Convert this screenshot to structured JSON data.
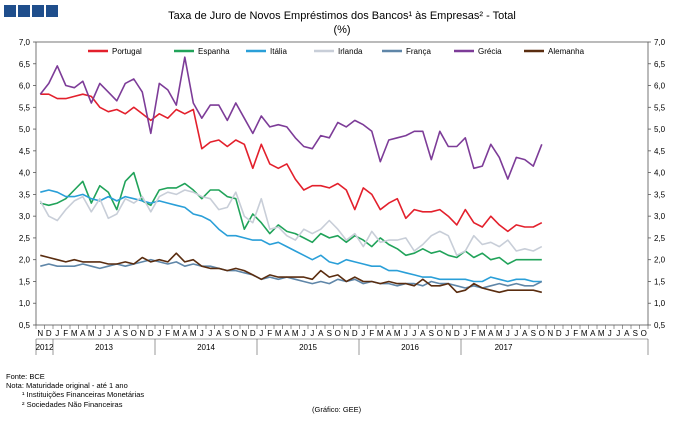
{
  "header": {
    "logo": "logo-squares"
  },
  "chart_data": {
    "type": "line",
    "title": "Taxa de Juro de Novos Empréstimos dos Bancos¹ às Empresas² - Total",
    "subtitle": "(%)",
    "ylim": [
      0.5,
      7.0
    ],
    "y_ticks": [
      "0,5",
      "1,0",
      "1,5",
      "2,0",
      "2,5",
      "3,0",
      "3,5",
      "4,0",
      "4,5",
      "5,0",
      "5,5",
      "6,0",
      "6,5",
      "7,0"
    ],
    "month_labels": [
      "N",
      "D",
      "J",
      "F",
      "M",
      "A",
      "M",
      "J",
      "J",
      "A",
      "S",
      "O",
      "N",
      "D",
      "J",
      "F",
      "M",
      "A",
      "M",
      "J",
      "J",
      "A",
      "S",
      "O",
      "N",
      "D",
      "J",
      "F",
      "M",
      "A",
      "M",
      "J",
      "J",
      "A",
      "S",
      "O",
      "N",
      "D",
      "J",
      "F",
      "M",
      "A",
      "M",
      "J",
      "J",
      "A",
      "S",
      "O",
      "N",
      "D",
      "J",
      "F",
      "M",
      "A",
      "M",
      "J",
      "J",
      "A",
      "S",
      "O",
      "N",
      "D",
      "J",
      "F",
      "M",
      "A",
      "M",
      "J",
      "J",
      "A",
      "S",
      "O"
    ],
    "years": [
      {
        "label": "2012",
        "start": 0,
        "end": 2
      },
      {
        "label": "2013",
        "start": 2,
        "end": 14
      },
      {
        "label": "2014",
        "start": 14,
        "end": 26
      },
      {
        "label": "2015",
        "start": 26,
        "end": 38
      },
      {
        "label": "2016",
        "start": 38,
        "end": 50
      },
      {
        "label": "2017",
        "start": 50,
        "end": 60
      }
    ],
    "series": [
      {
        "name": "Portugal",
        "color": "#e3202c",
        "values": [
          5.8,
          5.8,
          5.7,
          5.7,
          5.75,
          5.8,
          5.75,
          5.5,
          5.4,
          5.45,
          5.35,
          5.5,
          5.35,
          5.2,
          5.35,
          5.25,
          5.45,
          5.35,
          5.45,
          4.55,
          4.7,
          4.75,
          4.6,
          4.75,
          4.65,
          4.1,
          4.65,
          4.2,
          4.1,
          4.2,
          3.85,
          3.6,
          3.7,
          3.7,
          3.65,
          3.75,
          3.6,
          3.15,
          3.65,
          3.5,
          3.15,
          3.3,
          3.4,
          2.95,
          3.15,
          3.1,
          3.1,
          3.15,
          3.0,
          2.8,
          3.15,
          2.85,
          2.75,
          3.0,
          2.8,
          2.65,
          2.8,
          2.75,
          2.75,
          2.85
        ]
      },
      {
        "name": "Espanha",
        "color": "#21a35a",
        "values": [
          3.3,
          3.25,
          3.3,
          3.4,
          3.6,
          3.8,
          3.3,
          3.7,
          3.55,
          3.15,
          3.8,
          4.0,
          3.35,
          3.25,
          3.6,
          3.65,
          3.65,
          3.75,
          3.6,
          3.4,
          3.6,
          3.6,
          3.45,
          3.4,
          2.7,
          3.05,
          2.85,
          2.6,
          2.8,
          2.65,
          2.6,
          2.5,
          2.4,
          2.6,
          2.5,
          2.55,
          2.4,
          2.55,
          2.45,
          2.3,
          2.5,
          2.35,
          2.25,
          2.1,
          2.15,
          2.25,
          2.15,
          2.2,
          2.1,
          2.05,
          2.2,
          2.05,
          2.15,
          2.0,
          2.05,
          1.9,
          2.0,
          2.0,
          2.0,
          2.0
        ]
      },
      {
        "name": "Itália",
        "color": "#2a9fd8",
        "values": [
          3.55,
          3.6,
          3.55,
          3.45,
          3.45,
          3.5,
          3.4,
          3.35,
          3.45,
          3.35,
          3.45,
          3.4,
          3.35,
          3.3,
          3.35,
          3.3,
          3.25,
          3.2,
          3.05,
          3.0,
          2.9,
          2.7,
          2.55,
          2.55,
          2.5,
          2.45,
          2.45,
          2.35,
          2.4,
          2.3,
          2.2,
          2.1,
          2.0,
          2.1,
          1.95,
          1.9,
          2.0,
          1.95,
          1.9,
          1.85,
          1.85,
          1.75,
          1.75,
          1.7,
          1.65,
          1.6,
          1.6,
          1.55,
          1.55,
          1.55,
          1.55,
          1.5,
          1.5,
          1.6,
          1.55,
          1.5,
          1.55,
          1.55,
          1.5,
          1.5
        ]
      },
      {
        "name": "Irlanda",
        "color": "#c8ced8",
        "values": [
          3.35,
          3.0,
          2.9,
          3.15,
          3.35,
          3.45,
          3.1,
          3.4,
          2.95,
          3.05,
          3.4,
          3.3,
          3.45,
          3.1,
          3.45,
          3.55,
          3.5,
          3.6,
          3.55,
          3.45,
          3.4,
          3.15,
          3.2,
          3.55,
          3.0,
          2.85,
          3.4,
          2.7,
          2.75,
          2.55,
          2.45,
          2.7,
          2.6,
          2.7,
          2.9,
          2.7,
          2.45,
          2.6,
          2.3,
          2.65,
          2.4,
          2.45,
          2.45,
          2.5,
          2.2,
          2.35,
          2.55,
          2.65,
          2.55,
          2.1,
          2.2,
          2.55,
          2.35,
          2.4,
          2.3,
          2.45,
          2.2,
          2.25,
          2.2,
          2.3
        ]
      },
      {
        "name": "França",
        "color": "#5f86a8",
        "values": [
          1.85,
          1.9,
          1.85,
          1.85,
          1.85,
          1.9,
          1.85,
          1.8,
          1.85,
          1.9,
          1.85,
          1.9,
          1.95,
          2.0,
          1.95,
          1.9,
          1.95,
          1.85,
          1.9,
          1.85,
          1.85,
          1.8,
          1.75,
          1.75,
          1.7,
          1.65,
          1.55,
          1.6,
          1.55,
          1.6,
          1.55,
          1.5,
          1.45,
          1.5,
          1.45,
          1.55,
          1.5,
          1.55,
          1.45,
          1.5,
          1.45,
          1.45,
          1.4,
          1.45,
          1.45,
          1.4,
          1.5,
          1.45,
          1.45,
          1.4,
          1.35,
          1.4,
          1.35,
          1.4,
          1.45,
          1.4,
          1.45,
          1.4,
          1.4,
          1.5
        ]
      },
      {
        "name": "Grécia",
        "color": "#7d3c98",
        "values": [
          5.8,
          6.05,
          6.45,
          6.0,
          5.95,
          6.1,
          5.6,
          6.05,
          5.85,
          5.65,
          6.05,
          6.15,
          5.85,
          4.9,
          6.05,
          5.9,
          5.55,
          6.65,
          5.6,
          5.25,
          5.55,
          5.55,
          5.2,
          5.6,
          5.25,
          4.9,
          5.3,
          5.05,
          5.1,
          5.05,
          4.8,
          4.6,
          4.55,
          4.85,
          4.8,
          5.15,
          5.05,
          5.2,
          5.1,
          4.95,
          4.25,
          4.75,
          4.8,
          4.85,
          4.95,
          4.95,
          4.3,
          4.95,
          4.6,
          4.6,
          4.8,
          4.1,
          4.15,
          4.65,
          4.35,
          3.85,
          4.35,
          4.3,
          4.15,
          4.65
        ]
      },
      {
        "name": "Alemanha",
        "color": "#5a2d10",
        "values": [
          2.1,
          2.05,
          2.0,
          1.95,
          2.0,
          1.95,
          1.95,
          1.95,
          1.9,
          1.9,
          1.95,
          1.9,
          2.05,
          1.95,
          2.0,
          1.95,
          2.15,
          1.95,
          2.0,
          1.85,
          1.8,
          1.8,
          1.75,
          1.8,
          1.75,
          1.65,
          1.55,
          1.65,
          1.6,
          1.6,
          1.6,
          1.6,
          1.55,
          1.75,
          1.6,
          1.65,
          1.5,
          1.6,
          1.5,
          1.5,
          1.45,
          1.5,
          1.45,
          1.45,
          1.4,
          1.55,
          1.4,
          1.4,
          1.45,
          1.25,
          1.3,
          1.45,
          1.35,
          1.3,
          1.25,
          1.3,
          1.3,
          1.3,
          1.3,
          1.25
        ]
      }
    ]
  },
  "footnotes": {
    "source": "Fonte: BCE",
    "note": "Nota: Maturidade original - até 1 ano",
    "fn1": "¹ Instituições Financeiras Monetárias",
    "fn2": "² Sociedades Não Financeiras",
    "credit": "(Gráfico: GEE)"
  }
}
